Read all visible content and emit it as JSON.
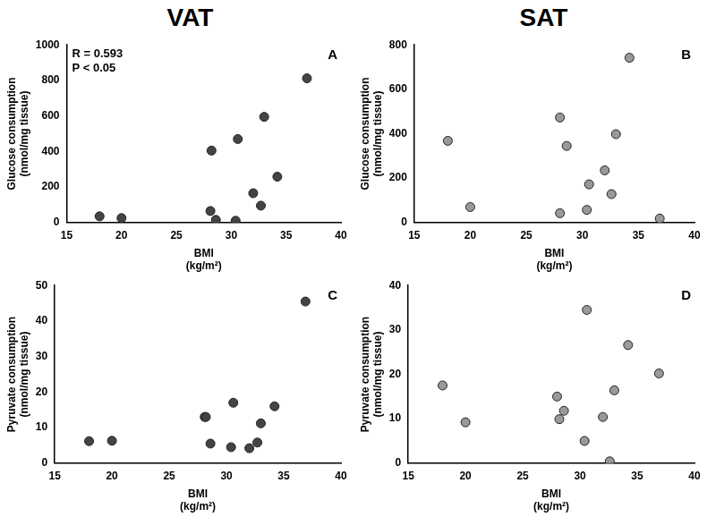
{
  "column_titles": [
    "VAT",
    "SAT"
  ],
  "chart_data": [
    {
      "type": "scatter",
      "panel": "A",
      "annotations": [
        "R = 0.593",
        "P < 0.05"
      ],
      "x_label": [
        "BMI",
        "(kg/m²)"
      ],
      "y_label": [
        "Glucose consumption",
        "(nmol/mg tissue)"
      ],
      "x": [
        18,
        20,
        28.1,
        28.2,
        28.6,
        30.4,
        30.6,
        32,
        32.7,
        33,
        34.2,
        36.9
      ],
      "values": [
        35,
        25,
        65,
        405,
        15,
        10,
        470,
        165,
        95,
        595,
        258,
        812
      ],
      "xlim": [
        15,
        40
      ],
      "xticks": [
        15,
        20,
        25,
        30,
        35,
        40
      ],
      "ylim": [
        0,
        1000
      ],
      "yticks": [
        0,
        200,
        400,
        600,
        800,
        1000
      ],
      "color": "#444444",
      "marker": "circle",
      "grid": false
    },
    {
      "type": "scatter",
      "panel": "B",
      "x_label": [
        "BMI",
        "(kg/m²)"
      ],
      "y_label": [
        "Glucose consumption",
        "(nmol/mg tissue)"
      ],
      "x": [
        18,
        20,
        28,
        28,
        28.6,
        30.4,
        30.6,
        32,
        32.6,
        33,
        34.2,
        36.9
      ],
      "values": [
        368,
        70,
        473,
        42,
        345,
        57,
        172,
        235,
        128,
        398,
        742,
        18
      ],
      "xlim": [
        15,
        40
      ],
      "xticks": [
        15,
        20,
        25,
        30,
        35,
        40
      ],
      "ylim": [
        0,
        800
      ],
      "yticks": [
        0,
        200,
        400,
        600,
        800
      ],
      "color": "#999999",
      "marker": "circle",
      "grid": false
    },
    {
      "type": "scatter",
      "panel": "C",
      "x_label": [
        "BMI",
        "(kg/m²)"
      ],
      "y_label": [
        "Pyruvate consumption",
        "(nmol/mg tissue)"
      ],
      "x": [
        18,
        20,
        28.1,
        28.2,
        28.6,
        30.4,
        30.6,
        32,
        32.7,
        33,
        34.2,
        36.9
      ],
      "values": [
        6.2,
        6.3,
        13,
        13,
        5.5,
        4.5,
        17,
        4.2,
        5.8,
        11.2,
        16,
        45.5
      ],
      "xlim": [
        15,
        40
      ],
      "xticks": [
        15,
        20,
        25,
        30,
        35,
        40
      ],
      "ylim": [
        0,
        50
      ],
      "yticks": [
        0,
        10,
        20,
        30,
        40,
        50
      ],
      "color": "#444444",
      "marker": "circle",
      "grid": false
    },
    {
      "type": "scatter",
      "panel": "D",
      "x_label": [
        "BMI",
        "(kg/m²)"
      ],
      "y_label": [
        "Pyruvate consumption",
        "(nmol/mg tissue)"
      ],
      "x": [
        18,
        20,
        28,
        28.2,
        28.6,
        30.4,
        30.6,
        32,
        32.6,
        33,
        34.2,
        36.9
      ],
      "values": [
        17.5,
        9.2,
        15,
        9.9,
        11.8,
        5,
        34.5,
        10.4,
        0.4,
        16.4,
        26.6,
        20.2
      ],
      "xlim": [
        15,
        40
      ],
      "xticks": [
        15,
        20,
        25,
        30,
        35,
        40
      ],
      "ylim": [
        0,
        40
      ],
      "yticks": [
        0,
        10,
        20,
        30,
        40
      ],
      "color": "#999999",
      "marker": "circle",
      "grid": false
    }
  ]
}
